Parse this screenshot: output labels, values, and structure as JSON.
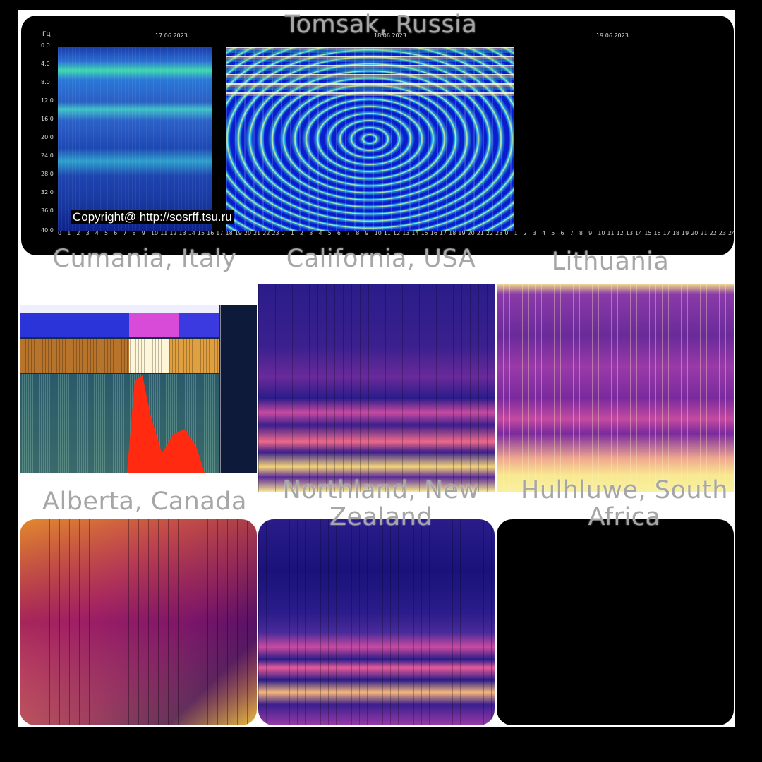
{
  "panels": {
    "tomsk": {
      "title": "Tomsak, Russia",
      "unit": "Гц",
      "dates": [
        "17.06.2023",
        "18.06.2023",
        "19.06.2023"
      ],
      "y_ticks": [
        "0.0",
        "4.0",
        "8.0",
        "12.0",
        "16.0",
        "20.0",
        "24.0",
        "28.0",
        "32.0",
        "36.0",
        "40.0"
      ],
      "x_ticks": [
        "0",
        "1",
        "2",
        "3",
        "4",
        "5",
        "6",
        "7",
        "8",
        "9",
        "10",
        "11",
        "12",
        "13",
        "14",
        "15",
        "16",
        "17",
        "18",
        "19",
        "20",
        "21",
        "22",
        "23",
        "0",
        "1",
        "2",
        "3",
        "4",
        "5",
        "6",
        "7",
        "8",
        "9",
        "10",
        "11",
        "12",
        "13",
        "14",
        "15",
        "16",
        "17",
        "18",
        "19",
        "20",
        "21",
        "22",
        "23",
        "0",
        "1",
        "2",
        "3",
        "4",
        "5",
        "6",
        "7",
        "8",
        "9",
        "10",
        "11",
        "12",
        "13",
        "14",
        "15",
        "16",
        "17",
        "18",
        "19",
        "20",
        "21",
        "22",
        "23",
        "24"
      ],
      "copyright": "Copyright@ http://sosrff.tsu.ru"
    },
    "cumiana": {
      "title": "Cumania, Italy"
    },
    "california": {
      "title": "California, USA"
    },
    "lithuania": {
      "title": "Lithuania"
    },
    "alberta": {
      "title": "Alberta, Canada"
    },
    "northland": {
      "title": "Northland, New Zealand"
    },
    "hluhluwe": {
      "title": "Hulhluwe, South Africa"
    }
  },
  "colors": {
    "background": "#000000",
    "canvas": "#ffffff",
    "title_text": "#a6a6a6"
  }
}
